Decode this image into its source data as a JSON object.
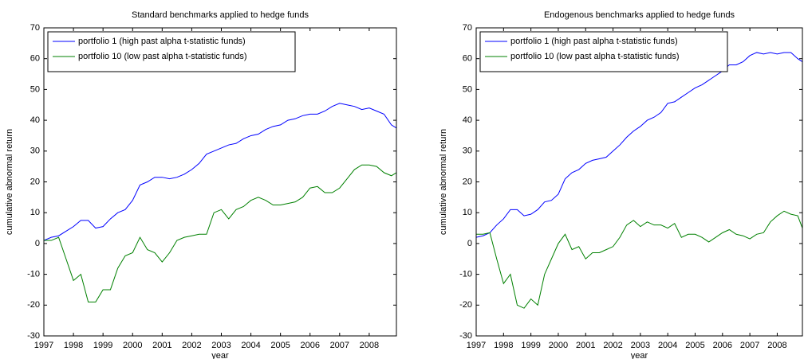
{
  "chart_data": [
    {
      "type": "line",
      "title": "Standard benchmarks applied to hedge funds",
      "xlabel": "year",
      "ylabel": "cumulative abnormal return",
      "xlim": [
        1997,
        2008.92
      ],
      "ylim": [
        -30,
        70
      ],
      "xticks": [
        1997,
        1998,
        1999,
        2000,
        2001,
        2002,
        2003,
        2004,
        2005,
        2006,
        2007,
        2008
      ],
      "yticks": [
        -30,
        -20,
        -10,
        0,
        10,
        20,
        30,
        40,
        50,
        60,
        70
      ],
      "legend": "upper left",
      "x": [
        1997,
        1997.25,
        1997.5,
        1997.75,
        1998,
        1998.25,
        1998.5,
        1998.75,
        1999,
        1999.25,
        1999.5,
        1999.75,
        2000,
        2000.25,
        2000.5,
        2000.75,
        2001,
        2001.25,
        2001.5,
        2001.75,
        2002,
        2002.25,
        2002.5,
        2002.75,
        2003,
        2003.25,
        2003.5,
        2003.75,
        2004,
        2004.25,
        2004.5,
        2004.75,
        2005,
        2005.25,
        2005.5,
        2005.75,
        2006,
        2006.25,
        2006.5,
        2006.75,
        2007,
        2007.25,
        2007.5,
        2007.75,
        2008,
        2008.25,
        2008.5,
        2008.75,
        2008.92
      ],
      "series": [
        {
          "name": "portfolio 1 (high past alpha t-statistic funds)",
          "color": "#0000ff",
          "values": [
            1,
            2,
            2.5,
            4,
            5.5,
            7.5,
            7.5,
            5,
            5.5,
            8,
            10,
            11,
            14,
            19,
            20,
            21.5,
            21.5,
            21,
            21.5,
            22.5,
            24,
            26,
            29,
            30,
            31,
            32,
            32.5,
            34,
            35,
            35.5,
            37,
            38,
            38.5,
            40,
            40.5,
            41.5,
            42,
            42,
            43,
            44.5,
            45.5,
            45,
            44.5,
            43.5,
            44,
            43,
            42,
            38.5,
            37.5
          ]
        },
        {
          "name": "portfolio 10 (low past alpha t-statistic funds)",
          "color": "#008000",
          "values": [
            1,
            1,
            2,
            -5,
            -12,
            -10,
            -19,
            -19,
            -15,
            -15,
            -8,
            -4,
            -3,
            2,
            -2,
            -3,
            -6,
            -3,
            1,
            2,
            2.5,
            3,
            3,
            10,
            11,
            8,
            11,
            12,
            14,
            15,
            14,
            12.5,
            12.5,
            13,
            13.5,
            15,
            18,
            18.5,
            16.5,
            16.5,
            18,
            21,
            24,
            25.5,
            25.5,
            25,
            23,
            22,
            23
          ]
        }
      ]
    },
    {
      "type": "line",
      "title": "Endogenous benchmarks applied to hedge funds",
      "xlabel": "year",
      "ylabel": "cumulative abnormal return",
      "xlim": [
        1997,
        2008.92
      ],
      "ylim": [
        -30,
        70
      ],
      "xticks": [
        1997,
        1998,
        1999,
        2000,
        2001,
        2002,
        2003,
        2004,
        2005,
        2006,
        2007,
        2008
      ],
      "yticks": [
        -30,
        -20,
        -10,
        0,
        10,
        20,
        30,
        40,
        50,
        60,
        70
      ],
      "legend": "upper left",
      "x": [
        1997,
        1997.25,
        1997.5,
        1997.75,
        1998,
        1998.25,
        1998.5,
        1998.75,
        1999,
        1999.25,
        1999.5,
        1999.75,
        2000,
        2000.25,
        2000.5,
        2000.75,
        2001,
        2001.25,
        2001.5,
        2001.75,
        2002,
        2002.25,
        2002.5,
        2002.75,
        2003,
        2003.25,
        2003.5,
        2003.75,
        2004,
        2004.25,
        2004.5,
        2004.75,
        2005,
        2005.25,
        2005.5,
        2005.75,
        2006,
        2006.25,
        2006.5,
        2006.75,
        2007,
        2007.25,
        2007.5,
        2007.75,
        2008,
        2008.25,
        2008.5,
        2008.75,
        2008.92
      ],
      "series": [
        {
          "name": "portfolio 1 (high past alpha t-statistic funds)",
          "color": "#0000ff",
          "values": [
            2,
            2.5,
            3.5,
            6,
            8,
            11,
            11,
            9,
            9.5,
            11,
            13.5,
            14,
            16,
            21,
            23,
            24,
            26,
            27,
            27.5,
            28,
            30,
            32,
            34.5,
            36.5,
            38,
            40,
            41,
            42.5,
            45.5,
            46,
            47.5,
            49,
            50.5,
            51.5,
            53,
            54.5,
            56,
            58,
            58,
            59,
            61,
            62,
            61.5,
            62,
            61.5,
            62,
            62,
            60,
            59
          ]
        },
        {
          "name": "portfolio 10 (low past alpha t-statistic funds)",
          "color": "#008000",
          "values": [
            3,
            3,
            3.5,
            -5,
            -13,
            -10,
            -20,
            -21,
            -18,
            -20,
            -10,
            -5,
            0,
            3,
            -2,
            -1,
            -5,
            -3,
            -3,
            -2,
            -1,
            2,
            6,
            7.5,
            5.5,
            7,
            6,
            6,
            5,
            6.5,
            2,
            3,
            3,
            2,
            0.5,
            2,
            3.5,
            4.5,
            3,
            2.5,
            1.5,
            3,
            3.5,
            7,
            9,
            10.5,
            9.5,
            9,
            5
          ]
        }
      ]
    }
  ]
}
